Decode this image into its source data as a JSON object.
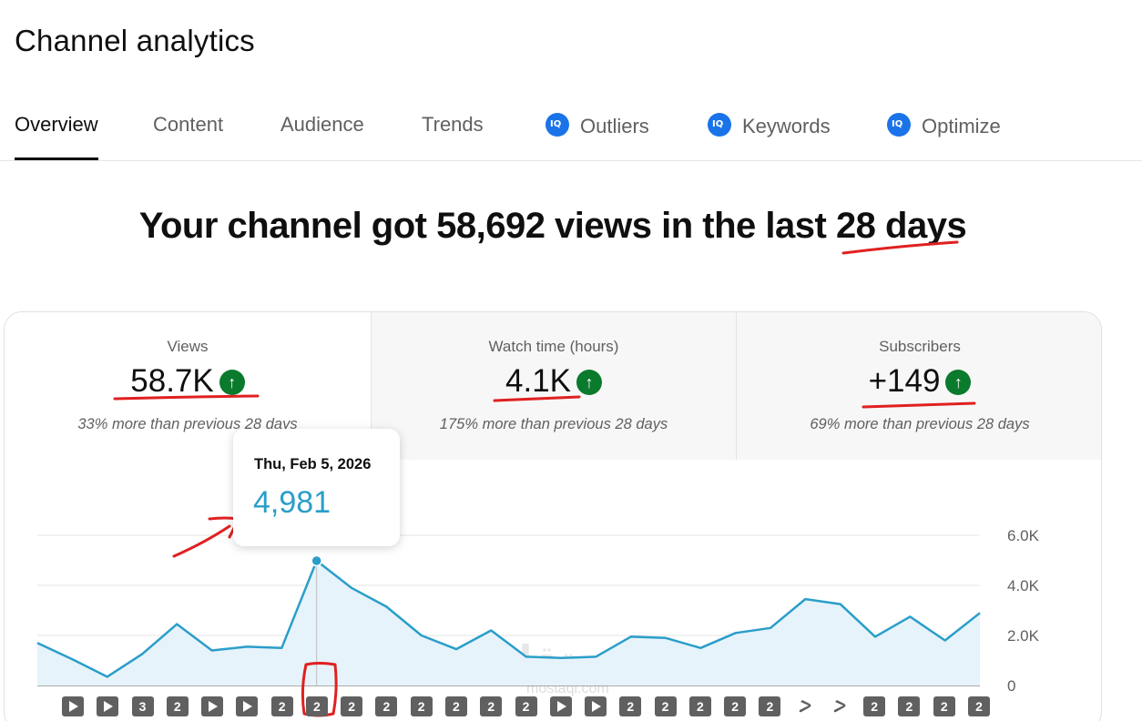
{
  "app": {
    "title": "Channel analytics"
  },
  "tabs": [
    {
      "label": "Overview",
      "active": true,
      "badge": false
    },
    {
      "label": "Content",
      "active": false,
      "badge": false
    },
    {
      "label": "Audience",
      "active": false,
      "badge": false
    },
    {
      "label": "Trends",
      "active": false,
      "badge": false
    },
    {
      "label": "Outliers",
      "active": false,
      "badge": true
    },
    {
      "label": "Keywords",
      "active": false,
      "badge": true
    },
    {
      "label": "Optimize",
      "active": false,
      "badge": true
    }
  ],
  "headline": {
    "text": "Your channel got 58,692 views in the last 28 days"
  },
  "metrics": [
    {
      "label": "Views",
      "value": "58.7K",
      "trend_icon": "arrow-up-icon",
      "comparison": "33% more than previous 28 days"
    },
    {
      "label": "Watch time (hours)",
      "value": "4.1K",
      "trend_icon": "arrow-up-icon",
      "comparison": "175% more than previous 28 days"
    },
    {
      "label": "Subscribers",
      "value": "+149",
      "trend_icon": "arrow-up-icon",
      "comparison": "69% more than previous 28 days"
    }
  ],
  "tooltip": {
    "date": "Thu, Feb 5, 2026",
    "value": "4,981"
  },
  "chart_data": {
    "type": "area",
    "ylabel": "",
    "xlabel": "",
    "ylim": [
      0,
      6000
    ],
    "yticks": [
      "6.0K",
      "4.0K",
      "2.0K",
      "0"
    ],
    "grid": true,
    "series": [
      {
        "values": [
          1700,
          1050,
          350,
          1250,
          2450,
          1400,
          1550,
          1500,
          4981,
          3900,
          3150,
          2000,
          1450,
          2200,
          1150,
          1100,
          1150,
          1950,
          1900,
          1500,
          2100,
          2300,
          3450,
          3250,
          1950,
          2750,
          1800,
          2900
        ]
      }
    ],
    "highlight_index": 8,
    "line_color": "#2a9ec9",
    "fill_color": "#e6f3fa"
  },
  "video_markers": [
    {
      "type": "play",
      "label": ""
    },
    {
      "type": "play",
      "label": ""
    },
    {
      "type": "count",
      "label": "3"
    },
    {
      "type": "count",
      "label": "2"
    },
    {
      "type": "play",
      "label": ""
    },
    {
      "type": "play",
      "label": ""
    },
    {
      "type": "count",
      "label": "2"
    },
    {
      "type": "count",
      "label": "2"
    },
    {
      "type": "count",
      "label": "2"
    },
    {
      "type": "count",
      "label": "2"
    },
    {
      "type": "count",
      "label": "2"
    },
    {
      "type": "count",
      "label": "2"
    },
    {
      "type": "count",
      "label": "2"
    },
    {
      "type": "count",
      "label": "2"
    },
    {
      "type": "play",
      "label": ""
    },
    {
      "type": "play",
      "label": ""
    },
    {
      "type": "count",
      "label": "2"
    },
    {
      "type": "count",
      "label": "2"
    },
    {
      "type": "count",
      "label": "2"
    },
    {
      "type": "count",
      "label": "2"
    },
    {
      "type": "count",
      "label": "2"
    },
    {
      "type": "shorts",
      "label": ""
    },
    {
      "type": "shorts",
      "label": ""
    },
    {
      "type": "count",
      "label": "2"
    },
    {
      "type": "count",
      "label": "2"
    },
    {
      "type": "count",
      "label": "2"
    },
    {
      "type": "count",
      "label": "2"
    }
  ],
  "watermark": {
    "text": "مستقل",
    "sub": "mostaql.com"
  },
  "annotation_color": "#e02020"
}
